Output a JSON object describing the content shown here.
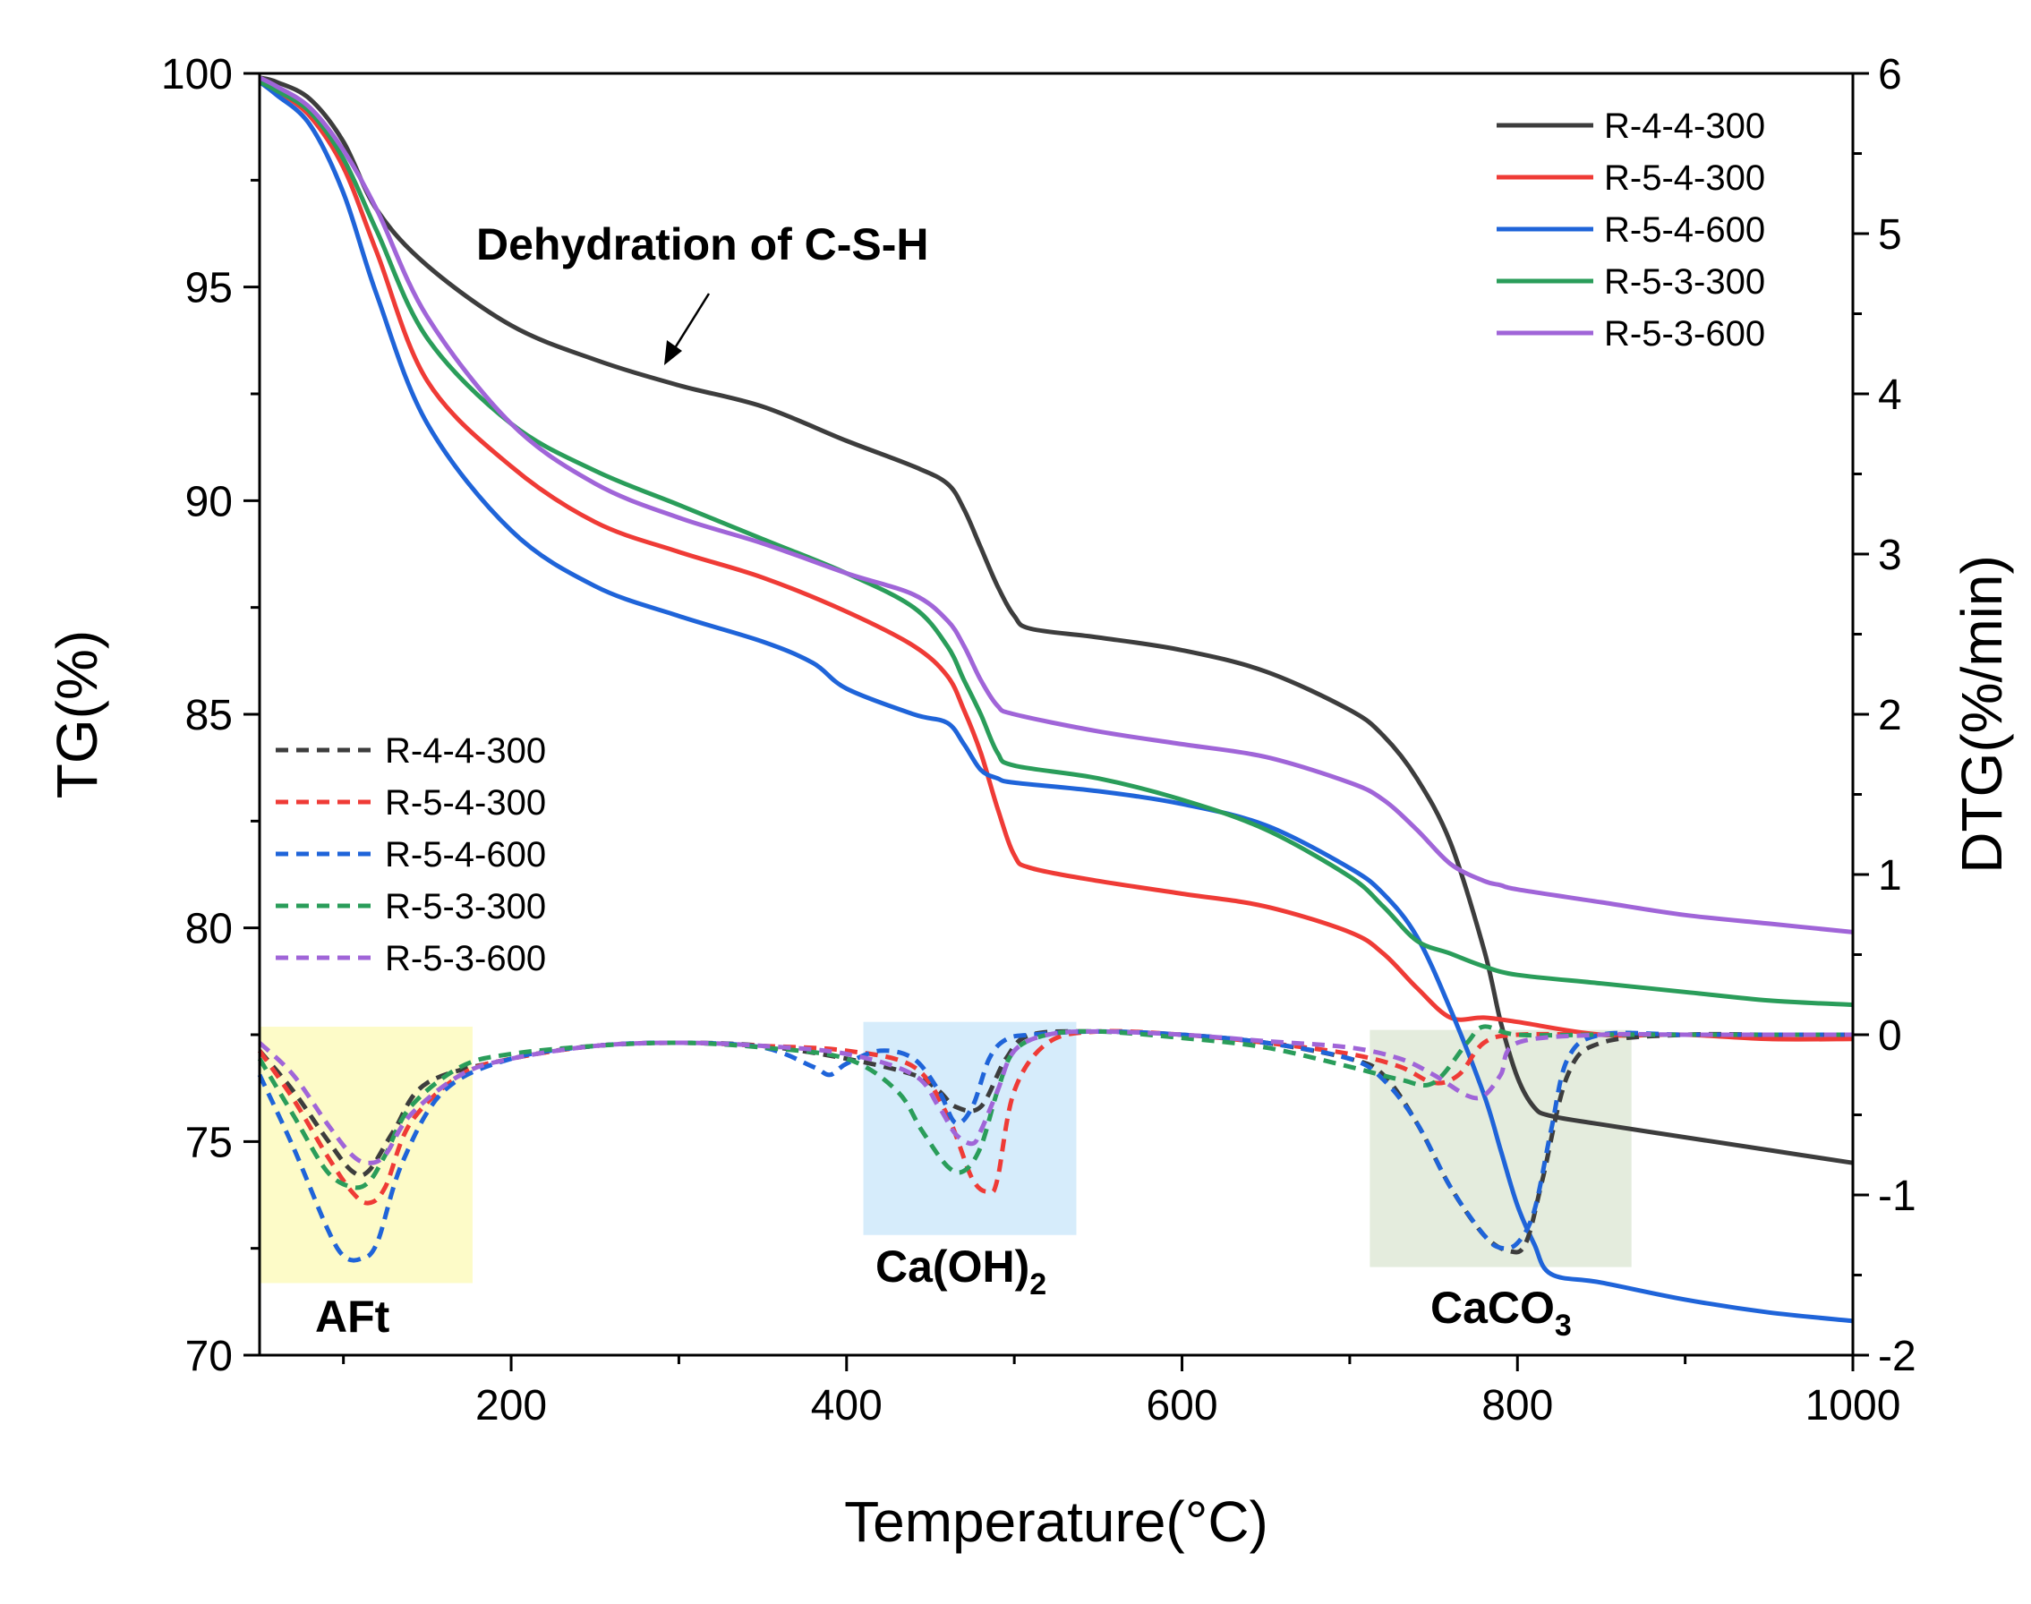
{
  "chart_data": {
    "type": "line",
    "title": "",
    "xlabel": "Temperature(°C)",
    "ylabel_left": "TG(%)",
    "ylabel_right": "DTG(%/min)",
    "xlim": [
      50,
      1000
    ],
    "ylim_left": [
      70,
      100
    ],
    "ylim_right": [
      -2,
      6
    ],
    "x_ticks": [
      200,
      400,
      600,
      800,
      1000
    ],
    "y_left_ticks": [
      70,
      75,
      80,
      85,
      90,
      95,
      100
    ],
    "y_right_ticks": [
      -2,
      -1,
      0,
      1,
      2,
      3,
      4,
      5,
      6
    ],
    "colors": {
      "R-4-4-300": "#3d3d3d",
      "R-5-4-300": "#ef3b36",
      "R-5-4-600": "#1f64d9",
      "R-5-3-300": "#2a9d5a",
      "R-5-3-600": "#a065d8"
    },
    "tg_series": [
      {
        "name": "R-4-4-300",
        "x": [
          50,
          60,
          80,
          100,
          120,
          150,
          200,
          250,
          300,
          350,
          400,
          440,
          460,
          470,
          480,
          490,
          500,
          510,
          550,
          600,
          650,
          700,
          720,
          740,
          760,
          780,
          790,
          800,
          810,
          820,
          850,
          900,
          950,
          1000
        ],
        "values": [
          99.9,
          99.8,
          99.4,
          98.4,
          96.8,
          95.5,
          94.1,
          93.3,
          92.7,
          92.2,
          91.4,
          90.8,
          90.4,
          89.8,
          88.9,
          88.0,
          87.3,
          87.0,
          86.8,
          86.5,
          86.0,
          85.1,
          84.5,
          83.5,
          82.0,
          79.5,
          77.8,
          76.5,
          75.8,
          75.6,
          75.4,
          75.1,
          74.8,
          74.5
        ]
      },
      {
        "name": "R-5-4-300",
        "x": [
          50,
          60,
          80,
          100,
          120,
          150,
          200,
          250,
          300,
          350,
          400,
          440,
          460,
          470,
          480,
          490,
          500,
          510,
          550,
          600,
          650,
          700,
          720,
          740,
          760,
          780,
          800,
          850,
          900,
          950,
          1000
        ],
        "values": [
          99.8,
          99.6,
          99.0,
          97.8,
          95.8,
          92.8,
          90.8,
          89.5,
          88.8,
          88.2,
          87.4,
          86.6,
          85.9,
          85.1,
          84.1,
          82.8,
          81.7,
          81.4,
          81.1,
          80.8,
          80.5,
          79.9,
          79.4,
          78.6,
          77.9,
          77.9,
          77.8,
          77.5,
          77.5,
          77.4,
          77.4
        ]
      },
      {
        "name": "R-5-4-600",
        "x": [
          50,
          60,
          80,
          100,
          120,
          150,
          200,
          250,
          300,
          350,
          380,
          400,
          440,
          460,
          470,
          480,
          490,
          500,
          550,
          600,
          650,
          700,
          720,
          740,
          760,
          780,
          790,
          800,
          810,
          820,
          850,
          900,
          950,
          1000
        ],
        "values": [
          99.8,
          99.5,
          98.8,
          97.2,
          94.8,
          91.8,
          89.3,
          88.0,
          87.3,
          86.7,
          86.2,
          85.6,
          85.0,
          84.8,
          84.3,
          83.7,
          83.5,
          83.4,
          83.2,
          82.9,
          82.4,
          81.4,
          80.8,
          79.8,
          78.1,
          76.1,
          74.8,
          73.5,
          72.6,
          71.9,
          71.7,
          71.3,
          71.0,
          70.8
        ]
      },
      {
        "name": "R-5-3-300",
        "x": [
          50,
          60,
          80,
          100,
          120,
          150,
          200,
          250,
          300,
          350,
          400,
          440,
          460,
          470,
          480,
          490,
          500,
          550,
          600,
          650,
          700,
          720,
          740,
          760,
          780,
          800,
          850,
          900,
          950,
          1000
        ],
        "values": [
          99.8,
          99.6,
          99.1,
          98.0,
          96.3,
          93.8,
          91.8,
          90.7,
          89.9,
          89.1,
          88.3,
          87.5,
          86.6,
          85.8,
          85.0,
          84.1,
          83.8,
          83.5,
          83.0,
          82.3,
          81.2,
          80.5,
          79.7,
          79.4,
          79.1,
          78.9,
          78.7,
          78.5,
          78.3,
          78.2
        ]
      },
      {
        "name": "R-5-3-600",
        "x": [
          50,
          60,
          80,
          100,
          120,
          150,
          200,
          250,
          300,
          350,
          400,
          440,
          460,
          470,
          480,
          490,
          500,
          550,
          600,
          650,
          700,
          720,
          740,
          760,
          780,
          790,
          800,
          850,
          900,
          950,
          1000
        ],
        "values": [
          99.9,
          99.7,
          99.2,
          98.2,
          96.8,
          94.3,
          91.8,
          90.4,
          89.6,
          89.0,
          88.3,
          87.8,
          87.2,
          86.6,
          85.8,
          85.2,
          85.0,
          84.6,
          84.3,
          84.0,
          83.4,
          83.0,
          82.3,
          81.5,
          81.1,
          81.0,
          80.9,
          80.6,
          80.3,
          80.1,
          79.9
        ]
      }
    ],
    "dtg_series": [
      {
        "name": "R-4-4-300",
        "x": [
          50,
          70,
          90,
          105,
          115,
          130,
          150,
          200,
          250,
          300,
          350,
          400,
          440,
          455,
          465,
          480,
          495,
          510,
          550,
          600,
          650,
          700,
          720,
          740,
          760,
          780,
          795,
          805,
          815,
          830,
          850,
          900,
          950,
          1000
        ],
        "values": [
          -0.1,
          -0.35,
          -0.65,
          -0.85,
          -0.85,
          -0.6,
          -0.3,
          -0.15,
          -0.07,
          -0.05,
          -0.07,
          -0.15,
          -0.25,
          -0.35,
          -0.45,
          -0.45,
          -0.15,
          0,
          0.02,
          0,
          -0.05,
          -0.15,
          -0.25,
          -0.55,
          -0.95,
          -1.25,
          -1.35,
          -1.3,
          -0.9,
          -0.25,
          -0.05,
          0,
          0,
          0
        ]
      },
      {
        "name": "R-5-4-300",
        "x": [
          50,
          70,
          90,
          105,
          115,
          125,
          140,
          170,
          200,
          250,
          300,
          350,
          400,
          440,
          460,
          475,
          485,
          490,
          500,
          520,
          550,
          600,
          650,
          700,
          730,
          750,
          765,
          780,
          800,
          850,
          900,
          950,
          1000
        ],
        "values": [
          -0.1,
          -0.4,
          -0.75,
          -0.98,
          -1.05,
          -0.95,
          -0.55,
          -0.25,
          -0.15,
          -0.07,
          -0.05,
          -0.07,
          -0.1,
          -0.2,
          -0.5,
          -0.9,
          -0.98,
          -0.9,
          -0.35,
          -0.05,
          0.02,
          0,
          -0.05,
          -0.12,
          -0.2,
          -0.3,
          -0.25,
          -0.05,
          0,
          0,
          0,
          0,
          0
        ]
      },
      {
        "name": "R-5-4-600",
        "x": [
          50,
          70,
          90,
          100,
          110,
          120,
          135,
          160,
          200,
          250,
          300,
          350,
          380,
          390,
          400,
          420,
          440,
          455,
          465,
          475,
          485,
          495,
          510,
          550,
          600,
          650,
          700,
          720,
          740,
          760,
          780,
          790,
          800,
          810,
          820,
          830,
          850,
          900,
          950,
          1000
        ],
        "values": [
          -0.25,
          -0.7,
          -1.2,
          -1.38,
          -1.4,
          -1.3,
          -0.8,
          -0.35,
          -0.15,
          -0.07,
          -0.05,
          -0.08,
          -0.2,
          -0.25,
          -0.18,
          -0.1,
          -0.15,
          -0.35,
          -0.55,
          -0.45,
          -0.15,
          -0.03,
          0,
          0.02,
          0,
          -0.05,
          -0.15,
          -0.28,
          -0.55,
          -0.95,
          -1.25,
          -1.33,
          -1.3,
          -1.1,
          -0.6,
          -0.15,
          0,
          0,
          0,
          0
        ]
      },
      {
        "name": "R-5-3-300",
        "x": [
          50,
          70,
          90,
          105,
          115,
          125,
          140,
          170,
          200,
          250,
          300,
          350,
          400,
          430,
          445,
          460,
          470,
          480,
          490,
          500,
          520,
          550,
          600,
          650,
          700,
          730,
          750,
          770,
          780,
          800,
          850,
          900,
          950,
          1000
        ],
        "values": [
          -0.15,
          -0.5,
          -0.85,
          -0.95,
          -0.92,
          -0.75,
          -0.45,
          -0.2,
          -0.12,
          -0.07,
          -0.05,
          -0.08,
          -0.15,
          -0.35,
          -0.6,
          -0.82,
          -0.85,
          -0.7,
          -0.35,
          -0.1,
          0,
          0.02,
          -0.02,
          -0.08,
          -0.2,
          -0.28,
          -0.3,
          -0.05,
          0.05,
          0,
          0,
          0,
          0,
          0
        ]
      },
      {
        "name": "R-5-3-600",
        "x": [
          50,
          70,
          90,
          105,
          115,
          125,
          140,
          170,
          200,
          250,
          300,
          350,
          400,
          440,
          455,
          465,
          475,
          480,
          490,
          500,
          520,
          550,
          600,
          650,
          700,
          730,
          750,
          770,
          780,
          790,
          800,
          850,
          900,
          950,
          1000
        ],
        "values": [
          -0.05,
          -0.25,
          -0.55,
          -0.75,
          -0.8,
          -0.75,
          -0.5,
          -0.25,
          -0.15,
          -0.07,
          -0.05,
          -0.07,
          -0.12,
          -0.25,
          -0.45,
          -0.62,
          -0.68,
          -0.6,
          -0.35,
          -0.1,
          0,
          0.02,
          0,
          -0.04,
          -0.08,
          -0.15,
          -0.25,
          -0.38,
          -0.38,
          -0.25,
          -0.05,
          0,
          0,
          0,
          0
        ]
      }
    ],
    "legend_solid": [
      "R-4-4-300",
      "R-5-4-300",
      "R-5-4-600",
      "R-5-3-300",
      "R-5-3-600"
    ],
    "legend_dashed": [
      "R-4-4-300",
      "R-5-4-300",
      "R-5-4-600",
      "R-5-3-300",
      "R-5-3-600"
    ],
    "annotations": {
      "csh": "Dehydration of C-S-H",
      "aft": "AFt",
      "caoh2_main": "Ca(OH)",
      "caoh2_sub": "2",
      "caco3_main": "CaCO",
      "caco3_sub": "3"
    },
    "regions": [
      {
        "name": "AFt",
        "x0": 50,
        "x1": 177,
        "dtg_top": 0.05,
        "dtg_bottom": -1.55,
        "color": "#fdfbc8"
      },
      {
        "name": "Ca(OH)2",
        "x0": 410,
        "x1": 537,
        "dtg_top": 0.08,
        "dtg_bottom": -1.25,
        "color": "#d6ecfb"
      },
      {
        "name": "CaCO3",
        "x0": 712,
        "x1": 868,
        "dtg_top": 0.03,
        "dtg_bottom": -1.45,
        "color": "#e4ecdd"
      }
    ]
  }
}
